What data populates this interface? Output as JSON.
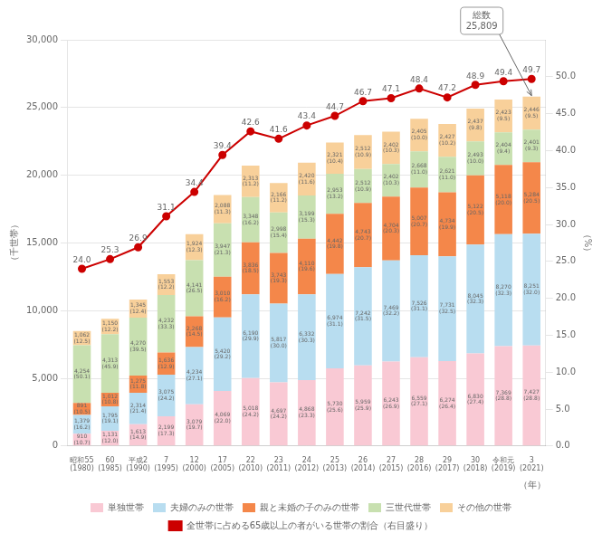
{
  "chart_data": {
    "type": "bar",
    "stacked": true,
    "data_labels": true,
    "grid": true,
    "legend": "bottom",
    "xlabel": "（年）",
    "ylabel": "（千世帯）",
    "y2label": "（%）",
    "categories": [
      "昭和55\n(1980)",
      "60\n(1985)",
      "平成2\n(1990)",
      "7\n(1995)",
      "12\n(2000)",
      "17\n(2005)",
      "22\n(2010)",
      "23\n(2011)",
      "24\n(2012)",
      "25\n(2013)",
      "26\n(2014)",
      "27\n(2015)",
      "28\n(2016)",
      "29\n(2017)",
      "30\n(2018)",
      "令和元\n(2019)",
      "3\n(2021)"
    ],
    "ylim": [
      0,
      30000
    ],
    "yticks": [
      0,
      {
        "value": 5000,
        "label": "5,000"
      },
      {
        "value": 10000,
        "label": "10,000"
      },
      {
        "value": 15000,
        "label": "15,000"
      },
      {
        "value": 20000,
        "label": "20,000"
      },
      {
        "value": 25000,
        "label": "25,000"
      },
      {
        "value": 30000,
        "label": "30,000"
      }
    ],
    "y2lim": [
      0,
      55
    ],
    "y2ticks": [
      {
        "value": 0,
        "label": "0.0"
      },
      {
        "value": 5,
        "label": "5.0"
      },
      {
        "value": 10,
        "label": "10.0"
      },
      {
        "value": 15,
        "label": "15.0"
      },
      {
        "value": 20,
        "label": "20.0"
      },
      {
        "value": 25,
        "label": "25.0"
      },
      {
        "value": 30,
        "label": "30.0"
      },
      {
        "value": 35,
        "label": "35.0"
      },
      {
        "value": 40,
        "label": "40.0"
      },
      {
        "value": 45,
        "label": "45.0"
      },
      {
        "value": 50,
        "label": "50.0"
      }
    ],
    "series": [
      {
        "name": "単独世帯",
        "color": "#f9c9d4",
        "values": [
          910,
          1131,
          1613,
          2199,
          3079,
          4069,
          5018,
          4697,
          4868,
          5730,
          5959,
          6243,
          6559,
          6274,
          6830,
          7369,
          7427
        ],
        "value_labels": [
          "910",
          "1,131",
          "1,613",
          "2,199",
          "3,079",
          "4,069",
          "5,018",
          "4,697",
          "4,868",
          "5,730",
          "5,959",
          "6,243",
          "6,559",
          "6,274",
          "6,830",
          "7,369",
          "7,427"
        ],
        "share_labels": [
          "(10.7)",
          "(12.0)",
          "(14.9)",
          "(17.3)",
          "(19.7)",
          "(22.0)",
          "(24.2)",
          "(24.2)",
          "(23.3)",
          "(25.6)",
          "(25.9)",
          "(26.9)",
          "(27.1)",
          "(26.4)",
          "(27.4)",
          "(28.8)",
          "(28.8)"
        ]
      },
      {
        "name": "夫婦のみの世帯",
        "color": "#b8ddf0",
        "values": [
          1379,
          1795,
          2314,
          3075,
          4234,
          5420,
          6190,
          5817,
          6332,
          6974,
          7242,
          7469,
          7526,
          7731,
          8045,
          8270,
          8251
        ],
        "value_labels": [
          "1,379",
          "1,795",
          "2,314",
          "3,075",
          "4,234",
          "5,420",
          "6,190",
          "5,817",
          "6,332",
          "6,974",
          "7,242",
          "7,469",
          "7,526",
          "7,731",
          "8,045",
          "8,270",
          "8,251"
        ],
        "share_labels": [
          "(16.2)",
          "(19.1)",
          "(21.4)",
          "(24.2)",
          "(27.1)",
          "(29.2)",
          "(29.9)",
          "(30.0)",
          "(30.3)",
          "(31.1)",
          "(31.5)",
          "(32.2)",
          "(31.1)",
          "(32.5)",
          "(32.3)",
          "(32.3)",
          "(32.0)"
        ]
      },
      {
        "name": "親と未婚の子のみの世帯",
        "color": "#f4874a",
        "values": [
          891,
          1012,
          1275,
          1636,
          2268,
          3010,
          3836,
          3743,
          4110,
          4442,
          4743,
          4704,
          5007,
          4734,
          5122,
          5118,
          5284
        ],
        "value_labels": [
          "891",
          "1,012",
          "1,275",
          "1,636",
          "2,268",
          "3,010",
          "3,836",
          "3,743",
          "4,110",
          "4,442",
          "4,743",
          "4,704",
          "5,007",
          "4,734",
          "5,122",
          "5,118",
          "5,284"
        ],
        "share_labels": [
          "(10.5)",
          "(10.8)",
          "(11.8)",
          "(12.9)",
          "(14.5)",
          "(16.2)",
          "(18.5)",
          "(19.3)",
          "(19.6)",
          "(19.8)",
          "(20.7)",
          "(20.3)",
          "(20.7)",
          "(19.9)",
          "(20.5)",
          "(20.0)",
          "(20.5)"
        ]
      },
      {
        "name": "三世代世帯",
        "color": "#c8e0b0",
        "values": [
          4254,
          4313,
          4270,
          4232,
          4141,
          3947,
          3348,
          2998,
          3199,
          2953,
          2512,
          2402,
          2668,
          2621,
          2493,
          2404,
          2401
        ],
        "value_labels": [
          "4,254",
          "4,313",
          "4,270",
          "4,232",
          "4,141",
          "3,947",
          "3,348",
          "2,998",
          "3,199",
          "2,953",
          "2,512",
          "2,402",
          "2,668",
          "2,621",
          "2,493",
          "2,404",
          "2,401"
        ],
        "share_labels": [
          "(50.1)",
          "(45.9)",
          "(39.5)",
          "(33.3)",
          "(26.5)",
          "(21.3)",
          "(16.2)",
          "(15.4)",
          "(15.3)",
          "(13.2)",
          "(10.9)",
          "(10.3)",
          "(11.0)",
          "(11.0)",
          "(10.0)",
          "(9.4)",
          "(9.3)"
        ]
      },
      {
        "name": "その他の世帯",
        "color": "#f8d09a",
        "values": [
          1062,
          1150,
          1345,
          1553,
          1924,
          2088,
          2313,
          2166,
          2420,
          2321,
          2512,
          2402,
          2405,
          2427,
          2437,
          2423,
          2446
        ],
        "value_labels": [
          "1,062",
          "1,150",
          "1,345",
          "1,553",
          "1,924",
          "2,088",
          "2,313",
          "2,166",
          "2,420",
          "2,321",
          "2,512",
          "2,402",
          "2,405",
          "2,427",
          "2,437",
          "2,423",
          "2,446"
        ],
        "share_labels": [
          "(12.5)",
          "(12.2)",
          "(12.4)",
          "(12.2)",
          "(12.3)",
          "(11.3)",
          "(11.2)",
          "(11.2)",
          "(11.6)",
          "(10.4)",
          "(10.9)",
          "(10.3)",
          "(10.0)",
          "(10.2)",
          "(9.8)",
          "(9.5)",
          "(9.5)"
        ]
      },
      {
        "name": "全世帯に占める65歳以上の者がいる世帯の割合（右目盛り）",
        "type": "line",
        "axis": "y2",
        "color": "#cc0000",
        "marker": "circle",
        "values": [
          24.0,
          25.3,
          26.9,
          31.1,
          34.4,
          39.4,
          42.6,
          41.6,
          43.4,
          44.7,
          46.7,
          47.1,
          48.4,
          47.2,
          48.9,
          49.4,
          49.7
        ],
        "value_labels": [
          "24.0",
          "25.3",
          "26.9",
          "31.1",
          "34.4",
          "39.4",
          "42.6",
          "41.6",
          "43.4",
          "44.7",
          "46.7",
          "47.1",
          "48.4",
          "47.2",
          "48.9",
          "49.4",
          "49.7"
        ]
      }
    ],
    "annotations": [
      {
        "text": "総数\n25,809",
        "x": "3\n(2021)",
        "y": 25809
      }
    ]
  }
}
